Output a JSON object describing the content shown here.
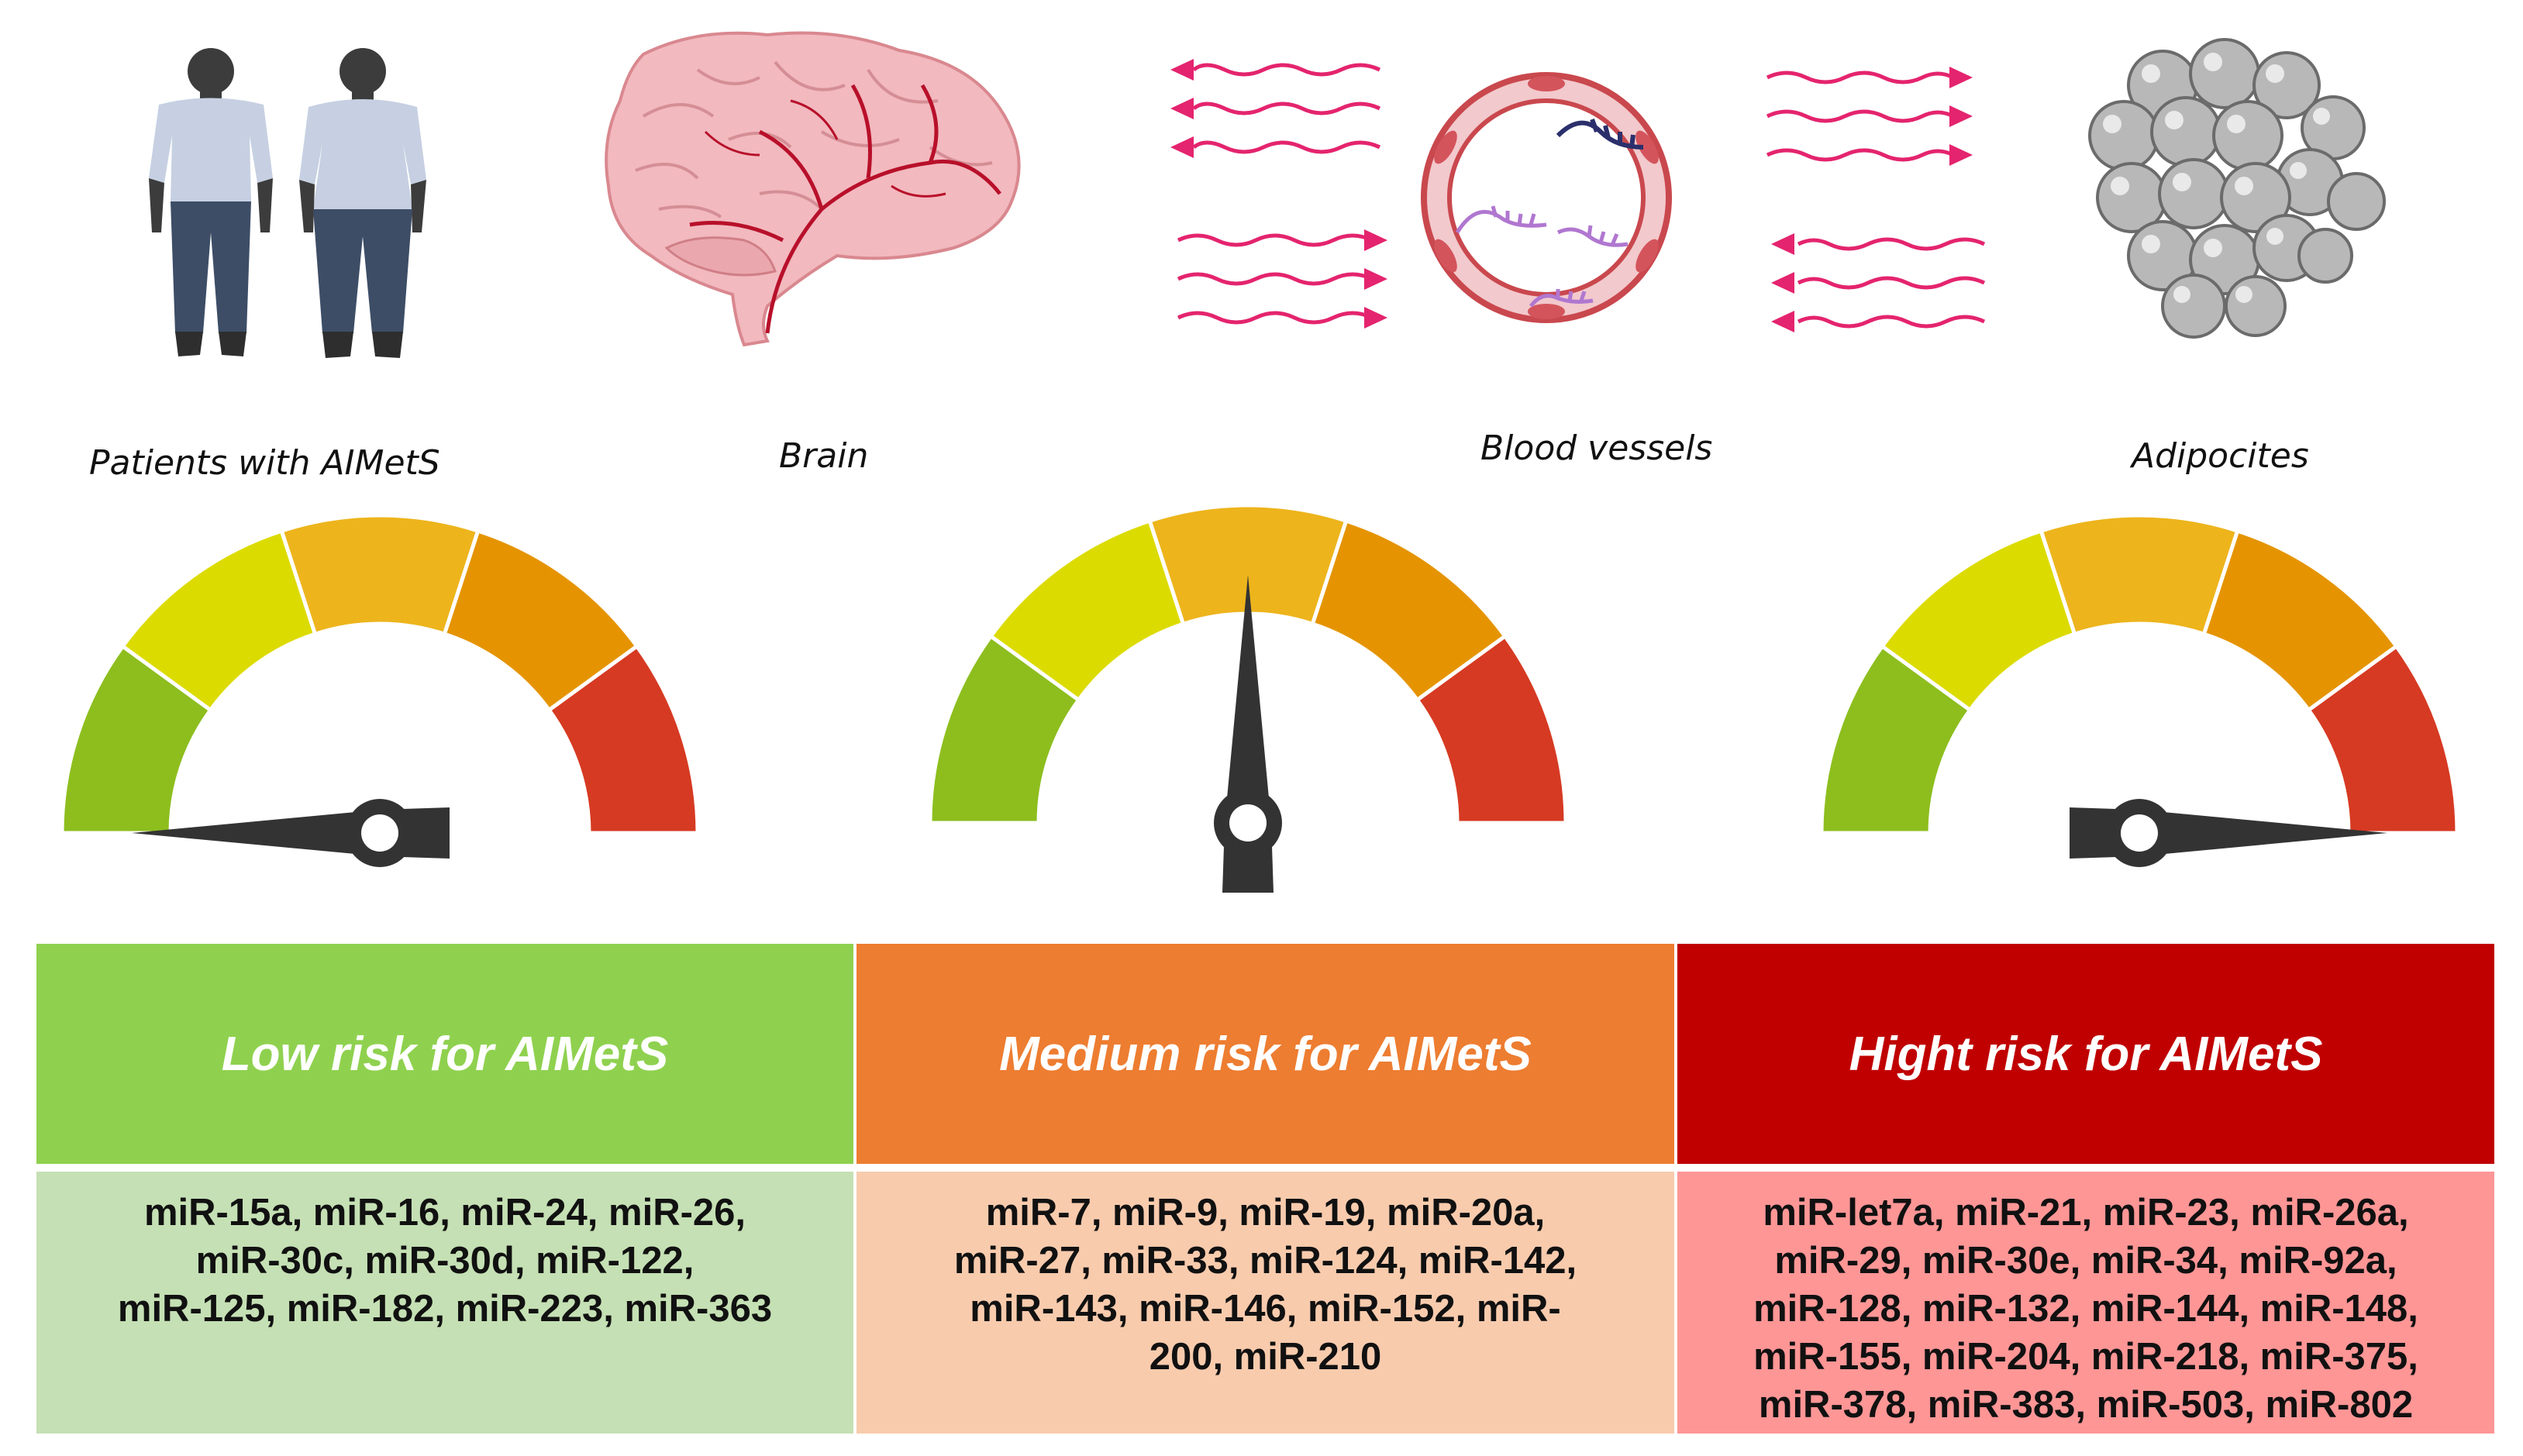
{
  "captions": {
    "patients": "Patients with AIMetS",
    "brain": "Brain",
    "vessels": "Blood vessels",
    "adipocytes": "Adipocites"
  },
  "gauges": [
    {
      "id": "low",
      "level": 0.0
    },
    {
      "id": "medium",
      "level": 0.5
    },
    {
      "id": "high",
      "level": 1.0
    }
  ],
  "gauge_colors": [
    "#8dbe1e",
    "#dcdb00",
    "#edb41c",
    "#e59400",
    "#d63a22"
  ],
  "risk_table": {
    "headers": [
      "Low risk for AIMetS",
      "Medium risk for AIMetS",
      "Hight risk for AIMetS"
    ],
    "header_colors": [
      "#8fd14f",
      "#ed7d31",
      "#c00000"
    ],
    "cell_colors": [
      "#c5e0b4",
      "#f8cbad",
      "#ff9696"
    ],
    "lists": [
      [
        "miR-15a, miR-16, miR-24, miR-26,",
        "miR-30c, miR-30d, miR-122,",
        "miR-125, miR-182, miR-223, miR-363"
      ],
      [
        "miR-7, miR-9, miR-19, miR-20a,",
        "miR-27, miR-33, miR-124, miR-142,",
        "miR-143, miR-146, miR-152, miR-",
        "200, miR-210"
      ],
      [
        "miR-let7a, miR-21, miR-23, miR-26a,",
        "miR-29, miR-30e, miR-34, miR-92a,",
        "miR-128, miR-132, miR-144,  miR-148,",
        "miR-155, miR-204,  miR-218, miR-375,",
        "miR-378, miR-383, miR-503, miR-802"
      ]
    ]
  }
}
